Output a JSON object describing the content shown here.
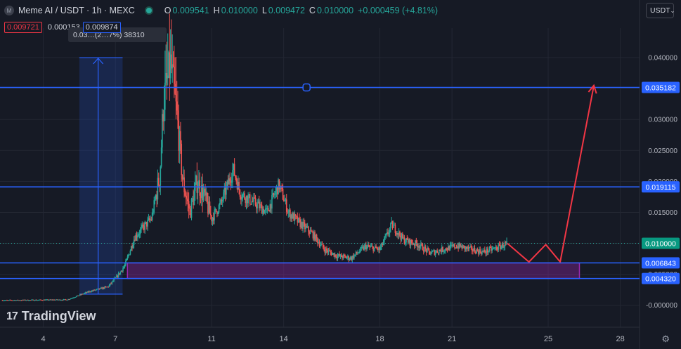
{
  "header": {
    "symbol": "Meme AI / USDT · 1h · MEXC",
    "logo_letter": "M",
    "open_label": "O",
    "open": "0.009541",
    "high_label": "H",
    "high": "0.010000",
    "low_label": "L",
    "low": "0.009472",
    "close_label": "C",
    "close": "0.010000",
    "change": "+0.000459 (+4.81%)"
  },
  "price_boxes": {
    "bid": "0.009721",
    "spread": "0.000153",
    "ask": "0.009874"
  },
  "tooltip": {
    "text": "0.03…(2…7%) 38310"
  },
  "currency_select": {
    "value": "USDT"
  },
  "branding": {
    "name": "TradingView",
    "mark": "17"
  },
  "colors": {
    "up": "#26a69a",
    "down": "#ef5350",
    "level": "#2962ff",
    "zone": "#9c27b0",
    "projection": "#f23645",
    "background": "#161a25"
  },
  "chart_data": {
    "type": "candlestick",
    "title": "Meme AI / USDT · 1h · MEXC",
    "x_range": [
      2.2,
      28.8
    ],
    "y_range": [
      -0.0006,
      0.0425
    ],
    "y_ticks": [
      "0.040000",
      "0.035000",
      "0.030000",
      "0.025000",
      "0.020000",
      "0.015000",
      "0.010000",
      "0.005000",
      "-0.000000"
    ],
    "y_tick_values": [
      0.04,
      0.035,
      0.03,
      0.025,
      0.02,
      0.015,
      0.01,
      0.005,
      0
    ],
    "x_ticks": [
      "4",
      "7",
      "11",
      "14",
      "18",
      "21",
      "25",
      "28"
    ],
    "x_tick_values": [
      4,
      7,
      11,
      14,
      18,
      21,
      25,
      28
    ],
    "price_path": [
      [
        2.3,
        0.0008
      ],
      [
        5.0,
        0.0009
      ],
      [
        5.9,
        0.0022
      ],
      [
        6.7,
        0.003
      ],
      [
        7.1,
        0.0048
      ],
      [
        7.4,
        0.0065
      ],
      [
        7.8,
        0.011
      ],
      [
        8.5,
        0.014
      ],
      [
        8.85,
        0.021
      ],
      [
        9.0,
        0.033
      ],
      [
        9.3,
        0.039
      ],
      [
        9.6,
        0.029
      ],
      [
        9.8,
        0.02
      ],
      [
        10.1,
        0.015
      ],
      [
        10.4,
        0.02
      ],
      [
        10.7,
        0.0175
      ],
      [
        11.0,
        0.014
      ],
      [
        11.4,
        0.0165
      ],
      [
        11.9,
        0.022
      ],
      [
        12.2,
        0.018
      ],
      [
        12.8,
        0.0165
      ],
      [
        13.3,
        0.015
      ],
      [
        13.8,
        0.0195
      ],
      [
        14.2,
        0.015
      ],
      [
        14.6,
        0.0135
      ],
      [
        15.2,
        0.0115
      ],
      [
        15.7,
        0.009
      ],
      [
        16.2,
        0.008
      ],
      [
        16.8,
        0.0076
      ],
      [
        17.4,
        0.0095
      ],
      [
        18.0,
        0.009
      ],
      [
        18.5,
        0.013
      ],
      [
        19.0,
        0.0105
      ],
      [
        19.6,
        0.0098
      ],
      [
        20.1,
        0.0084
      ],
      [
        20.6,
        0.009
      ],
      [
        21.2,
        0.0096
      ],
      [
        21.8,
        0.009
      ],
      [
        22.3,
        0.0086
      ],
      [
        22.9,
        0.0093
      ],
      [
        23.3,
        0.01
      ]
    ],
    "levels": [
      {
        "price": 0.035182,
        "label": "0.035182"
      },
      {
        "price": 0.019115,
        "label": "0.019115"
      },
      {
        "price": 0.006843,
        "label": "0.006843"
      },
      {
        "price": 0.00432,
        "label": "0.004320"
      }
    ],
    "last_price": {
      "price": 0.01,
      "label": "0.010000"
    },
    "zone": {
      "x_start": 7.5,
      "x_end": 26.3,
      "top": 0.006843,
      "bottom": 0.00432
    },
    "measure": {
      "x_start": 5.5,
      "x_end": 7.3,
      "low": 0.0018,
      "high": 0.04
    },
    "projection": [
      [
        23.3,
        0.01
      ],
      [
        24.2,
        0.007
      ],
      [
        24.9,
        0.0098
      ],
      [
        25.5,
        0.007
      ],
      [
        26.9,
        0.0355
      ]
    ],
    "level_handle": {
      "x": 14.95,
      "price": 0.035182
    }
  }
}
